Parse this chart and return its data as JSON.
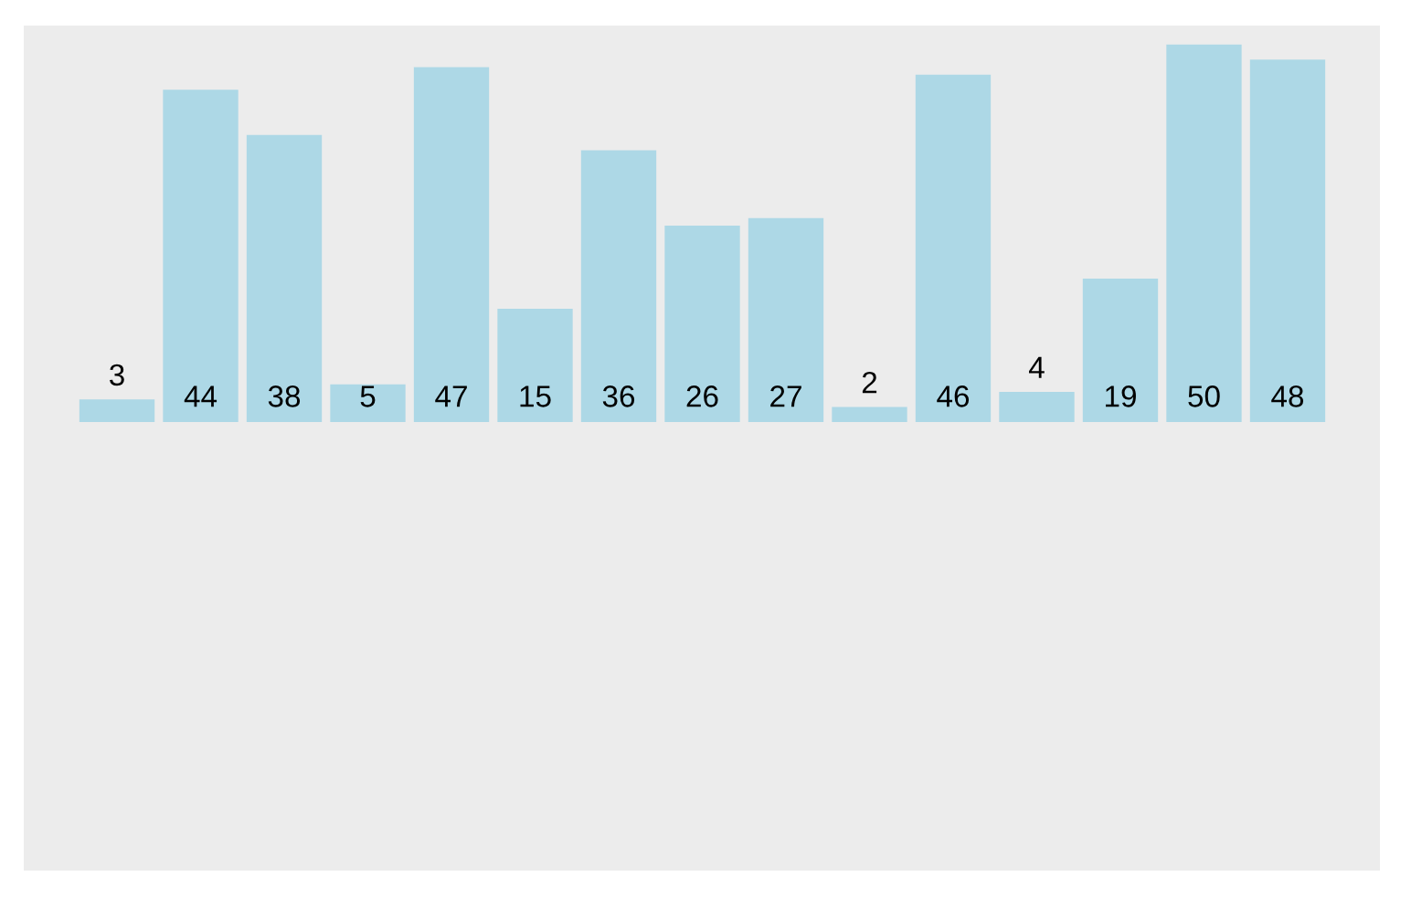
{
  "chart_data": {
    "type": "bar",
    "categories": [
      null,
      null,
      null,
      null,
      null,
      null,
      null,
      null,
      null,
      null,
      null,
      null,
      null,
      null,
      null
    ],
    "values": [
      3,
      44,
      38,
      5,
      47,
      15,
      36,
      26,
      27,
      2,
      46,
      4,
      19,
      50,
      48
    ],
    "color": "#add8e6",
    "data_labels": true,
    "tick_labels": false,
    "grid": false,
    "legend": false
  }
}
